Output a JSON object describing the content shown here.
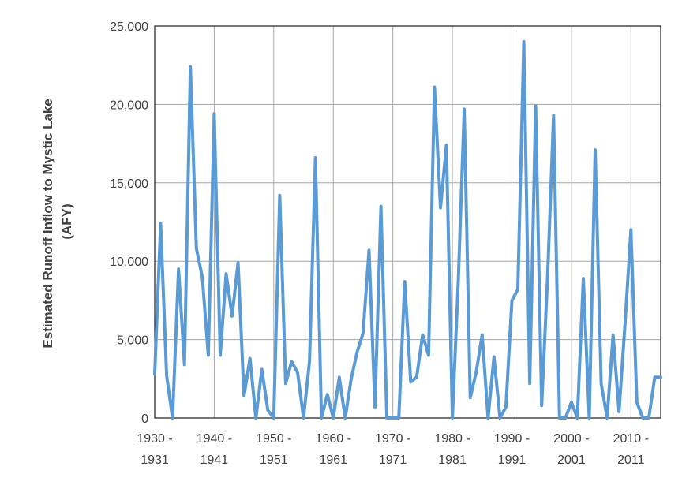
{
  "chart_data": {
    "type": "line",
    "title": "",
    "xlabel": "",
    "ylabel_lines": [
      "Estimated Runoff Inflow to Mystic Lake",
      "(AFY)"
    ],
    "ylim": [
      0,
      25000
    ],
    "xlim": [
      1930,
      2015
    ],
    "grid": true,
    "line_color": "#5b9bd5",
    "grid_color": "#a6a6a6",
    "y_ticks": [
      {
        "value": 0,
        "label": "0"
      },
      {
        "value": 5000,
        "label": "5,000"
      },
      {
        "value": 10000,
        "label": "10,000"
      },
      {
        "value": 15000,
        "label": "15,000"
      },
      {
        "value": 20000,
        "label": "20,000"
      },
      {
        "value": 25000,
        "label": "25,000"
      }
    ],
    "x_ticks": [
      {
        "value": 1930,
        "line1": "1930 -",
        "line2": "1931"
      },
      {
        "value": 1940,
        "line1": "1940 -",
        "line2": "1941"
      },
      {
        "value": 1950,
        "line1": "1950 -",
        "line2": "1951"
      },
      {
        "value": 1960,
        "line1": "1960 -",
        "line2": "1961"
      },
      {
        "value": 1970,
        "line1": "1970 -",
        "line2": "1971"
      },
      {
        "value": 1980,
        "line1": "1980 -",
        "line2": "1981"
      },
      {
        "value": 1990,
        "line1": "1990 -",
        "line2": "1991"
      },
      {
        "value": 2000,
        "line1": "2000 -",
        "line2": "2001"
      },
      {
        "value": 2010,
        "line1": "2010 -",
        "line2": "2011"
      }
    ],
    "series": [
      {
        "x": [
          1930,
          1931,
          1932,
          1933,
          1934,
          1935,
          1936,
          1937,
          1938,
          1939,
          1940,
          1941,
          1942,
          1943,
          1944,
          1945,
          1946,
          1947,
          1948,
          1949,
          1950,
          1951,
          1952,
          1953,
          1954,
          1955,
          1956,
          1957,
          1958,
          1959,
          1960,
          1961,
          1962,
          1963,
          1964,
          1965,
          1966,
          1967,
          1968,
          1969,
          1970,
          1971,
          1972,
          1973,
          1974,
          1975,
          1976,
          1977,
          1978,
          1979,
          1980,
          1981,
          1982,
          1983,
          1984,
          1985,
          1986,
          1987,
          1988,
          1989,
          1990,
          1991,
          1992,
          1993,
          1994,
          1995,
          1996,
          1997,
          1998,
          1999,
          2000,
          2001,
          2002,
          2003,
          2004,
          2005,
          2006,
          2007,
          2008,
          2009,
          2010,
          2011,
          2012,
          2013,
          2014,
          2015
        ],
        "y": [
          2800,
          12400,
          2700,
          0,
          9500,
          3400,
          22400,
          10800,
          9000,
          4000,
          19400,
          4000,
          9200,
          6500,
          9900,
          1400,
          3800,
          0,
          3100,
          500,
          0,
          14200,
          2200,
          3600,
          2900,
          0,
          3600,
          16600,
          0,
          1500,
          0,
          2600,
          0,
          2500,
          4200,
          5400,
          10700,
          700,
          13500,
          0,
          0,
          0,
          8700,
          2300,
          2600,
          5300,
          4000,
          21100,
          13400,
          17400,
          0,
          8800,
          19700,
          1300,
          2900,
          5300,
          0,
          3900,
          0,
          700,
          7500,
          8200,
          24000,
          2200,
          19900,
          800,
          9000,
          19300,
          0,
          0,
          1000,
          0,
          8900,
          0,
          17100,
          2200,
          0,
          5300,
          400,
          6000,
          12000,
          1000,
          0,
          0,
          2600,
          2600
        ]
      }
    ]
  }
}
